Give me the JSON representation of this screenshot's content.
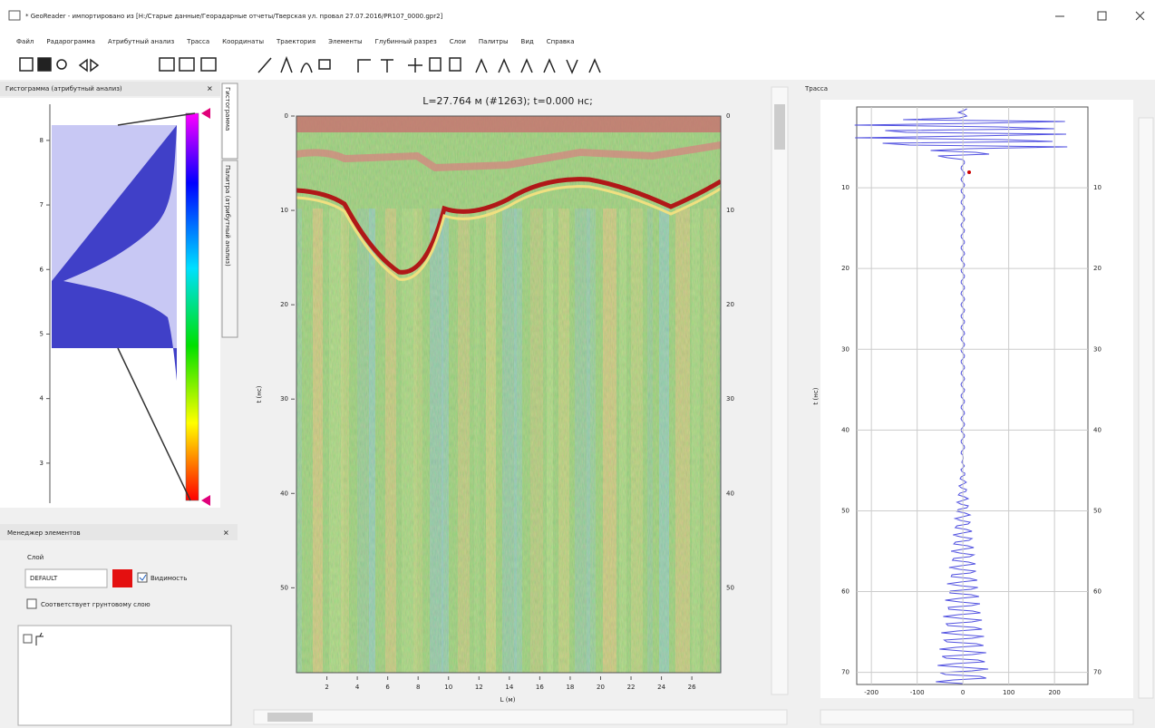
{
  "window": {
    "title": "* GeoReader - импортировано из [H:/Старые данные/Георадарные отчеты/Тверская ул. провал 27.07.2016/PR107_0000.gpr2]"
  },
  "menu": [
    "Файл",
    "Радарограмма",
    "Атрибутный анализ",
    "Трасса",
    "Координаты",
    "Траектория",
    "Элементы",
    "Глубинный разрез",
    "Слои",
    "Палитры",
    "Вид",
    "Справка"
  ],
  "histogram_panel": {
    "title": "Гистограмма (атрибутный анализ)",
    "tabs": [
      "Гистограмма",
      "Палитра (атрибутный анализ)"
    ],
    "ylim": [
      2.38,
      8.56
    ],
    "yticks": [
      3,
      4,
      5,
      6,
      7,
      8
    ]
  },
  "elements_panel": {
    "title": "Менеджер элементов",
    "layer_label": "Слой",
    "layer_value": "DEFAULT",
    "visibility": "Видимость",
    "ground_layer": "Соответствует грунтовому слою"
  },
  "radargram": {
    "title": "L=27.764 м (#1263); t=0.000 нс;",
    "xlabel": "L (м)",
    "ylabel": "t (нс)",
    "xlim": [
      0,
      27.9
    ],
    "xticks": [
      2,
      4,
      6,
      8,
      10,
      12,
      14,
      16,
      18,
      20,
      22,
      24,
      26
    ],
    "ylim": [
      0,
      59
    ],
    "yticks": [
      0,
      10,
      20,
      30,
      40,
      50
    ]
  },
  "trace": {
    "title": "Трасса",
    "ylabel": "t (нс)",
    "xlim": [
      -232,
      273
    ],
    "xticks": [
      -200,
      -100,
      0,
      100,
      200
    ],
    "ylim": [
      0,
      71.5
    ],
    "yticks": [
      10,
      20,
      30,
      40,
      50,
      60,
      70
    ]
  }
}
